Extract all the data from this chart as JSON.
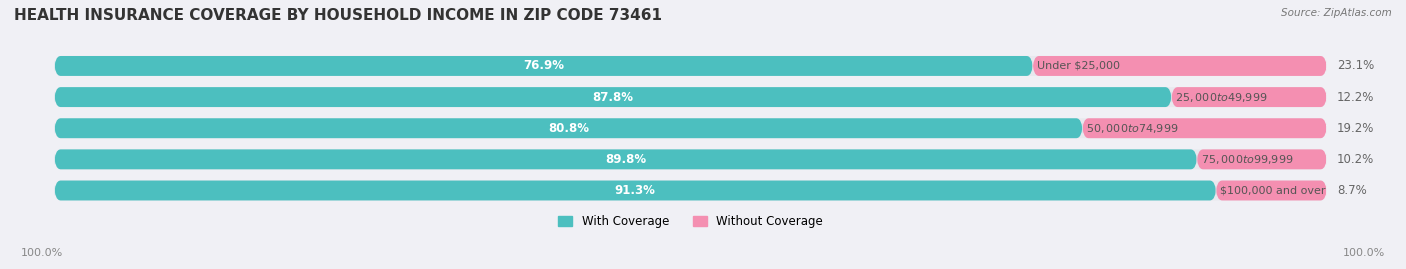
{
  "title": "HEALTH INSURANCE COVERAGE BY HOUSEHOLD INCOME IN ZIP CODE 73461",
  "source": "Source: ZipAtlas.com",
  "categories": [
    "Under $25,000",
    "$25,000 to $49,999",
    "$50,000 to $74,999",
    "$75,000 to $99,999",
    "$100,000 and over"
  ],
  "with_coverage": [
    76.9,
    87.8,
    80.8,
    89.8,
    91.3
  ],
  "without_coverage": [
    23.1,
    12.2,
    19.2,
    10.2,
    8.7
  ],
  "color_with": "#4CBFBF",
  "color_without": "#F48FB1",
  "bg_color": "#f0f0f5",
  "bar_bg_color": "#e8e8ee",
  "title_fontsize": 11,
  "label_fontsize": 8.5,
  "bar_height": 0.62,
  "xlim": [
    0,
    100
  ],
  "legend_with": "With Coverage",
  "legend_without": "Without Coverage",
  "bottom_left_label": "100.0%",
  "bottom_right_label": "100.0%"
}
